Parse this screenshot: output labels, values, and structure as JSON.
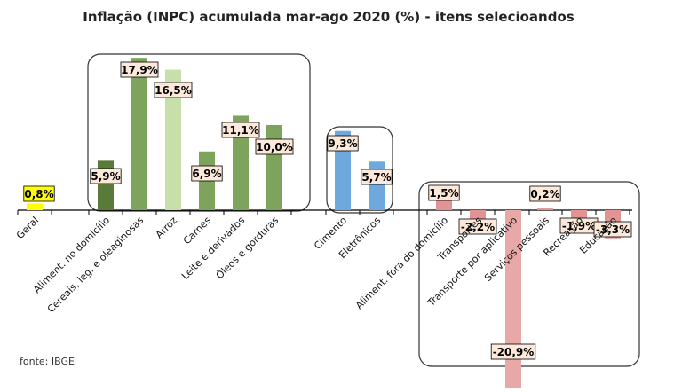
{
  "chart_data": {
    "type": "bar",
    "title": "Inflação  (INPC) acumulada  mar-ago 2020 (%) - itens selecioandos",
    "source": "fonte: IBGE",
    "xlabel": "",
    "ylabel": "",
    "ylim": [
      -20.9,
      17.9
    ],
    "grid": false,
    "legend": "none",
    "categories": [
      "Geral",
      "Aliment. no domicílio",
      "Cereais, leg. e oleaginosas",
      "Arroz",
      "Carnes",
      "Leite e derivados",
      "Óleos e gorduras",
      "Cimento",
      "Eletrônicos",
      "Aliment. fora do domicílio",
      "Transportes",
      "Transporte por aplicativo",
      "Serviços pessoais",
      "Recreação",
      "Educação"
    ],
    "values": [
      0.8,
      5.9,
      17.9,
      16.5,
      6.9,
      11.1,
      10.0,
      9.3,
      5.7,
      1.5,
      -2.2,
      -20.9,
      0.2,
      -1.9,
      -3.3
    ],
    "value_labels": [
      "0,8%",
      "5,9%",
      "17,9%",
      "16,5%",
      "6,9%",
      "11,1%",
      "10,0%",
      "9,3%",
      "5,7%",
      "1,5%",
      "-2,2%",
      "-20,9%",
      "0,2%",
      "-1,9%",
      "-3,3%"
    ],
    "colors": [
      "#ffff00",
      "#5a7a3a",
      "#7ea35c",
      "#c7dfa8",
      "#7ea35c",
      "#7ea35c",
      "#7ea35c",
      "#6fa8dc",
      "#6fa8dc",
      "#e29393",
      "#e29393",
      "#e8a8a8",
      "#e29393",
      "#e29393",
      "#e29393"
    ],
    "label_fill": "#fde9d9",
    "groups": [
      {
        "name": "alimentos",
        "members": [
          1,
          2,
          3,
          4,
          5,
          6
        ]
      },
      {
        "name": "construcao-eletronicos",
        "members": [
          7,
          8
        ]
      },
      {
        "name": "servicos",
        "members": [
          9,
          10,
          11,
          12,
          13,
          14
        ]
      }
    ]
  }
}
